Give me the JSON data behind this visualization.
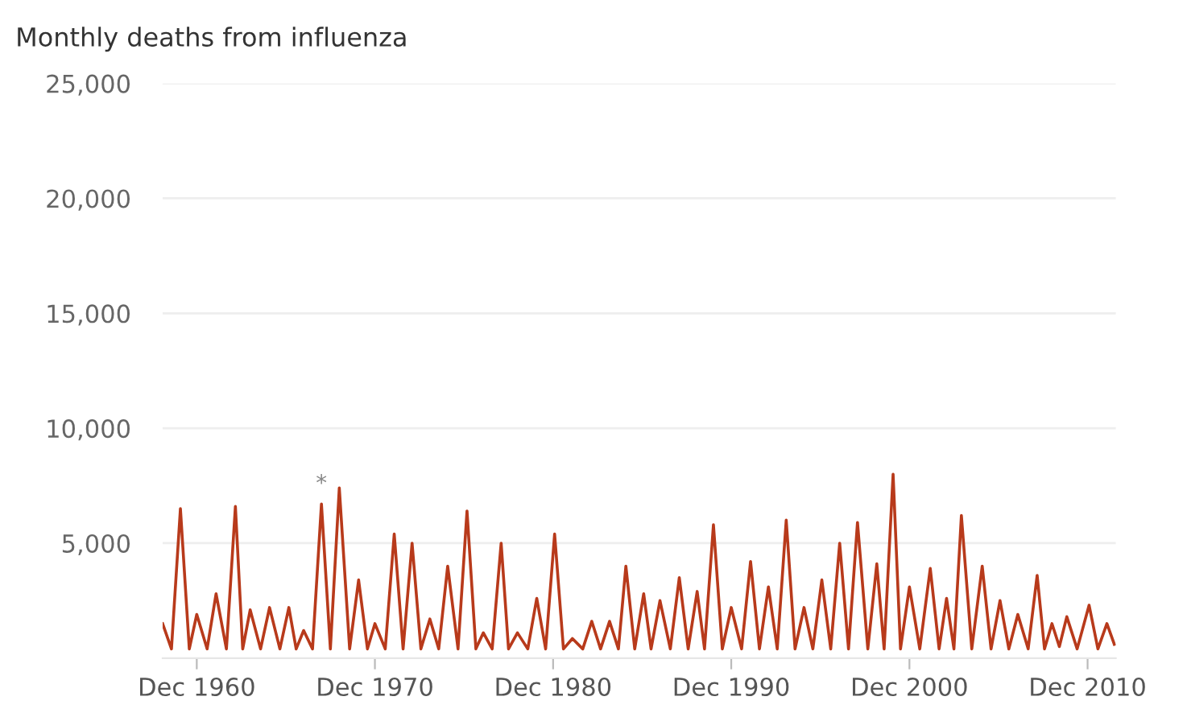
{
  "chart_data": {
    "type": "line",
    "title": "Monthly deaths from influenza",
    "x": [
      "1959-01",
      "1959-07",
      "1960-01",
      "1960-07",
      "1960-12",
      "1961-07",
      "1962-01",
      "1962-08",
      "1963-02",
      "1963-07",
      "1963-12",
      "1964-07",
      "1965-01",
      "1965-08",
      "1966-02",
      "1966-07",
      "1966-12",
      "1967-06",
      "1967-12",
      "1968-06",
      "1968-12",
      "1969-07",
      "1970-01",
      "1970-07",
      "1970-12",
      "1971-07",
      "1972-01",
      "1972-07",
      "1973-01",
      "1973-07",
      "1974-01",
      "1974-07",
      "1975-01",
      "1975-08",
      "1976-02",
      "1976-08",
      "1977-01",
      "1977-07",
      "1978-01",
      "1978-06",
      "1978-12",
      "1979-07",
      "1980-01",
      "1980-07",
      "1981-01",
      "1981-07",
      "1982-01",
      "1982-08",
      "1983-02",
      "1983-08",
      "1984-02",
      "1984-08",
      "1985-01",
      "1985-07",
      "1986-01",
      "1986-06",
      "1986-12",
      "1987-07",
      "1988-01",
      "1988-07",
      "1989-01",
      "1989-06",
      "1989-12",
      "1990-06",
      "1990-12",
      "1991-07",
      "1992-01",
      "1992-07",
      "1993-01",
      "1993-07",
      "1994-01",
      "1994-07",
      "1995-01",
      "1995-07",
      "1996-01",
      "1996-07",
      "1997-01",
      "1997-07",
      "1998-01",
      "1998-08",
      "1999-02",
      "1999-07",
      "2000-01",
      "2000-06",
      "2000-12",
      "2001-07",
      "2002-02",
      "2002-08",
      "2003-01",
      "2003-06",
      "2003-11",
      "2004-06",
      "2005-01",
      "2005-07",
      "2006-01",
      "2006-07",
      "2007-01",
      "2007-08",
      "2008-02",
      "2008-07",
      "2008-12",
      "2009-05",
      "2009-10",
      "2010-05",
      "2011-01",
      "2011-07",
      "2012-01",
      "2012-06"
    ],
    "series": [
      {
        "color": "#b83a1b",
        "values": [
          1500,
          400,
          6500,
          400,
          1900,
          400,
          2800,
          400,
          6600,
          400,
          2100,
          400,
          2200,
          400,
          2200,
          400,
          1200,
          400,
          6700,
          400,
          7400,
          400,
          3400,
          400,
          1500,
          400,
          5400,
          400,
          5000,
          400,
          1700,
          400,
          4000,
          400,
          6400,
          400,
          1100,
          400,
          5000,
          400,
          1100,
          400,
          2600,
          400,
          5400,
          400,
          850,
          400,
          1600,
          400,
          1600,
          400,
          4000,
          400,
          2800,
          400,
          2500,
          400,
          3500,
          400,
          2900,
          400,
          5800,
          400,
          2200,
          400,
          4200,
          400,
          3100,
          400,
          6000,
          400,
          2200,
          400,
          3400,
          400,
          5000,
          400,
          5900,
          400,
          4100,
          400,
          8000,
          400,
          3100,
          400,
          3900,
          400,
          2600,
          400,
          6200,
          400,
          4000,
          400,
          2500,
          400,
          1900,
          400,
          3600,
          400,
          1500,
          500,
          1800,
          400,
          2300,
          400,
          1500,
          600
        ]
      }
    ],
    "xlim": [
      "1959-01",
      "2012-07"
    ],
    "xticks": [
      {
        "value": "1960-12",
        "label": "Dec 1960"
      },
      {
        "value": "1970-12",
        "label": "Dec 1970"
      },
      {
        "value": "1980-12",
        "label": "Dec 1980"
      },
      {
        "value": "1990-12",
        "label": "Dec 1990"
      },
      {
        "value": "2000-12",
        "label": "Dec 2000"
      },
      {
        "value": "2010-12",
        "label": "Dec 2010"
      }
    ],
    "ylim": [
      0,
      25000
    ],
    "yticks": [
      {
        "value": 5000,
        "label": "5,000"
      },
      {
        "value": 10000,
        "label": "10,000"
      },
      {
        "value": 15000,
        "label": "15,000"
      },
      {
        "value": 20000,
        "label": "20,000"
      },
      {
        "value": 25000,
        "label": "25,000"
      }
    ],
    "grid": "y",
    "annotations": [
      {
        "text": "*",
        "x": "1967-12",
        "y": 6700
      }
    ]
  }
}
